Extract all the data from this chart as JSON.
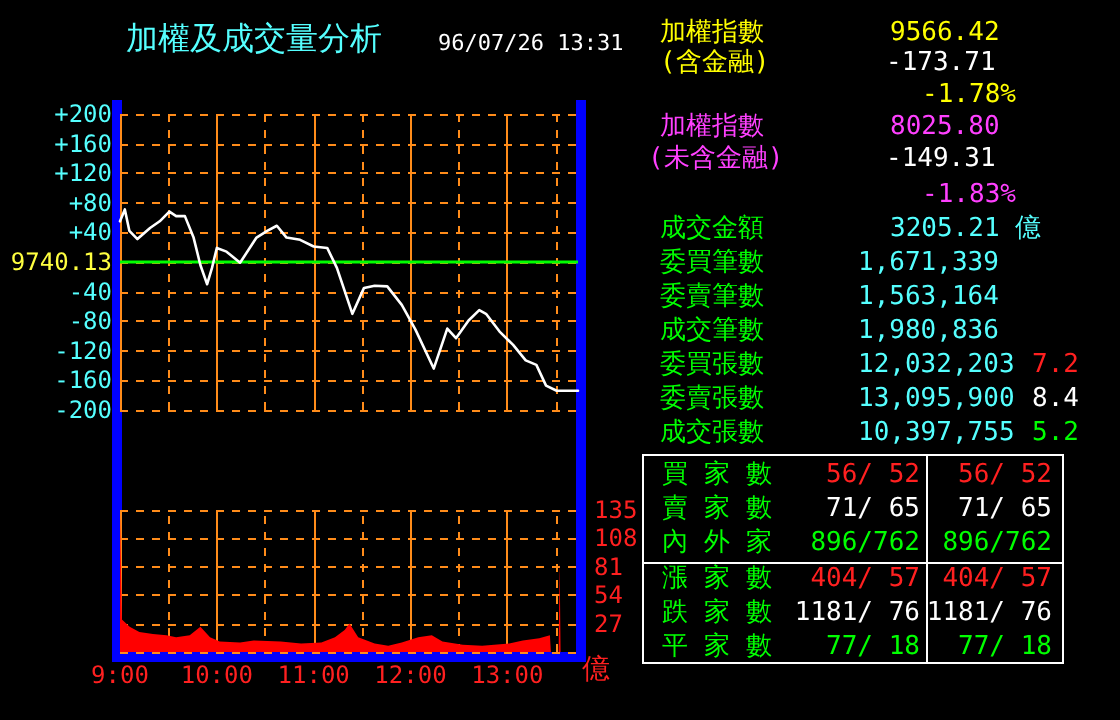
{
  "chart_data": [
    {
      "type": "line",
      "title": "加權及成交量分析",
      "subtitle": "96/07/26 13:31",
      "x": [
        9.0,
        9.05,
        9.097,
        9.18,
        9.31,
        9.41,
        9.51,
        9.58,
        9.67,
        9.76,
        9.83,
        9.9,
        9.95,
        10.0,
        10.1,
        10.24,
        10.41,
        10.52,
        10.62,
        10.72,
        10.86,
        11.0,
        11.14,
        11.24,
        11.4,
        11.52,
        11.63,
        11.76,
        11.91,
        12.05,
        12.24,
        12.38,
        12.47,
        12.6,
        12.71,
        12.78,
        12.92,
        13.06,
        13.19,
        13.3,
        13.4,
        13.51,
        13.73
      ],
      "series": [
        {
          "color": "#ffffff",
          "values": [
            55,
            71,
            42,
            31,
            46,
            55,
            68,
            62,
            62,
            33,
            -4,
            -30,
            -8,
            19,
            14,
            -1,
            33,
            42,
            49,
            33,
            30,
            21,
            19,
            -8,
            -70,
            -35,
            -32,
            -33,
            -58,
            -91,
            -144,
            -90,
            -103,
            -79,
            -65,
            -70,
            -94,
            -112,
            -133,
            -139,
            -167,
            -174,
            -174
          ]
        }
      ],
      "xlim": [
        9,
        13.73
      ],
      "xticks": [
        9,
        {
          "value": 9.5,
          "label": null
        },
        10,
        {
          "value": 10.5,
          "label": null
        },
        11,
        {
          "value": 11.5,
          "label": null
        },
        12,
        {
          "value": 12.5,
          "label": null
        },
        13,
        {
          "value": 13.5,
          "label": null
        }
      ],
      "ylim": [
        -200,
        200
      ],
      "yticks": [
        {
          "value": -200,
          "label": "-200"
        },
        {
          "value": -160,
          "label": "-160"
        },
        {
          "value": -120,
          "label": "-120"
        },
        {
          "value": -80,
          "label": "-80"
        },
        {
          "value": -40,
          "label": "-40"
        },
        {
          "value": 0,
          "label": null
        },
        {
          "value": 40,
          "label": "+40"
        },
        {
          "value": 80,
          "label": "+80"
        },
        {
          "value": 120,
          "label": "+120"
        },
        {
          "value": 160,
          "label": "+160"
        },
        {
          "value": 200,
          "label": "+200"
        }
      ],
      "ref_lines": [
        {
          "axis": "y",
          "value": 0,
          "color": "#00ff00"
        }
      ],
      "annotations": [
        "9740.13"
      ],
      "grid": true,
      "marker": "none",
      "tick_labels": "y"
    },
    {
      "type": "area",
      "ylabel": "億",
      "x": [
        9.0,
        9.02,
        9.1,
        9.2,
        9.34,
        9.48,
        9.58,
        9.72,
        9.83,
        9.93,
        10.03,
        10.24,
        10.38,
        10.66,
        10.87,
        11.08,
        11.22,
        11.32,
        11.37,
        11.46,
        11.63,
        11.77,
        11.91,
        12.08,
        12.22,
        12.33,
        12.54,
        12.74,
        13.02,
        13.16,
        13.33,
        13.44,
        13.45,
        13.53,
        13.54,
        13.55
      ],
      "series": [
        {
          "color": "#ff0000",
          "values": [
            133,
            31,
            24,
            19,
            17,
            16,
            14,
            16,
            24,
            14,
            10,
            9,
            11,
            10,
            8,
            9,
            14,
            21,
            27,
            14,
            8,
            6,
            9,
            14,
            16,
            10,
            7,
            6,
            8,
            11,
            13,
            16,
            0,
            0,
            86,
            0
          ]
        }
      ],
      "xlim": [
        9,
        13.73
      ],
      "xticks": [
        {
          "value": 9,
          "label": "9:00"
        },
        {
          "value": 9.5,
          "label": null
        },
        {
          "value": 10,
          "label": "10:00"
        },
        {
          "value": 10.5,
          "label": null
        },
        {
          "value": 11,
          "label": "11:00"
        },
        {
          "value": 11.5,
          "label": null
        },
        {
          "value": 12,
          "label": "12:00"
        },
        {
          "value": 12.5,
          "label": null
        },
        {
          "value": 13,
          "label": "13:00"
        },
        {
          "value": 13.5,
          "label": null
        }
      ],
      "ylim": [
        0,
        135
      ],
      "yticks": [
        27,
        54,
        81,
        108,
        135
      ],
      "grid": true,
      "marker": "none"
    },
    {
      "type": "other",
      "annotations": [
        "加權指數",
        "(含金融)",
        "9566.42",
        "-173.71",
        "-1.78%",
        "加權指數",
        "(未含金融)",
        "8025.80",
        "-149.31",
        "-1.83%",
        "成交金額",
        "3205.21 億",
        "委買筆數",
        "1,671,339",
        "委賣筆數",
        "1,563,164",
        "成交筆數",
        "1,980,836",
        "委買張數",
        "12,032,203",
        "7.2",
        "委賣張數",
        "13,095,900",
        "8.4",
        "成交張數",
        "10,397,755",
        "5.2",
        "買家數",
        "56/ 52",
        "56/ 52",
        "賣家數",
        "71/ 65",
        "71/ 65",
        "內外家",
        "896/762",
        "896/762",
        "漲家數",
        "404/ 57",
        "404/ 57",
        "跌家數",
        "1181/ 76",
        "1181/ 76",
        "平家數",
        "77/ 18",
        "77/ 18"
      ]
    }
  ]
}
